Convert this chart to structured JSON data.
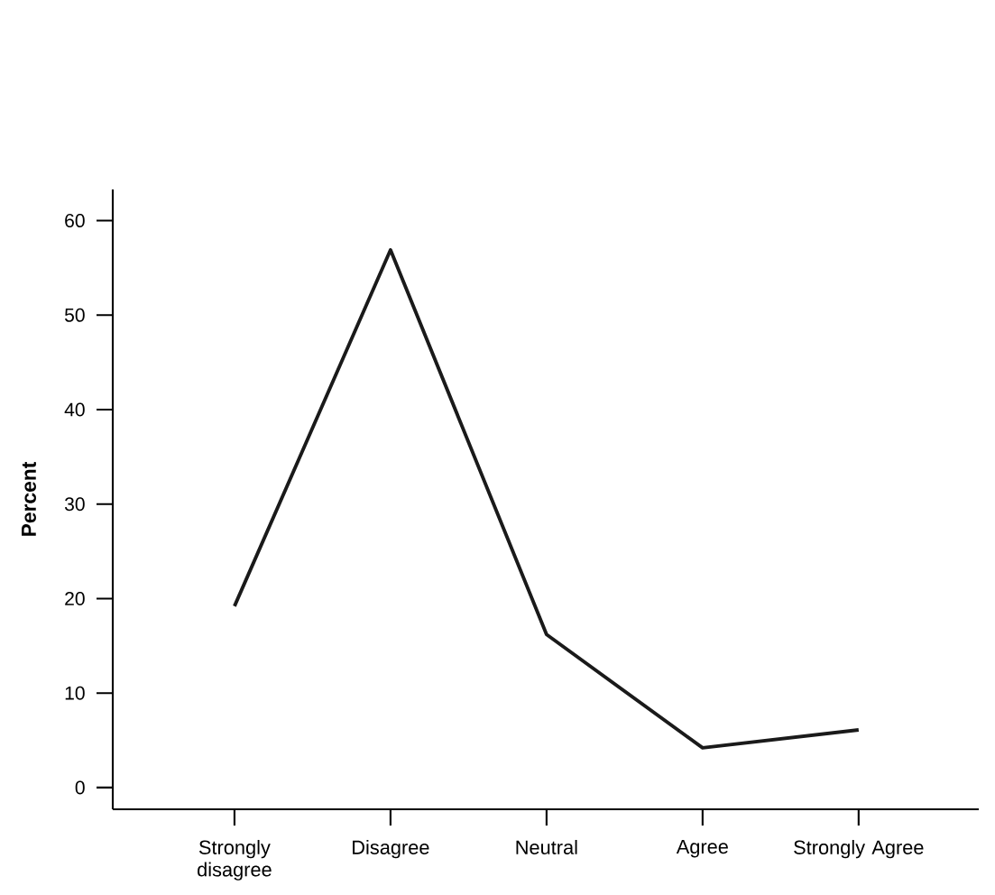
{
  "chart_data": {
    "type": "line",
    "ylabel": "Percent",
    "categories": [
      "Strongly disagree",
      "Disagree",
      "Neutral",
      "Agree",
      "Strongly Agree"
    ],
    "series": [
      {
        "color": "#1a1a1a",
        "values": [
          19.2,
          56.9,
          16.2,
          4.2,
          6.1
        ]
      }
    ],
    "ylim": [
      -2.3,
      63.3
    ],
    "yticks": [
      0,
      10,
      20,
      30,
      40,
      50,
      60
    ],
    "grid": false,
    "marker": "none",
    "line_style": "solid"
  }
}
